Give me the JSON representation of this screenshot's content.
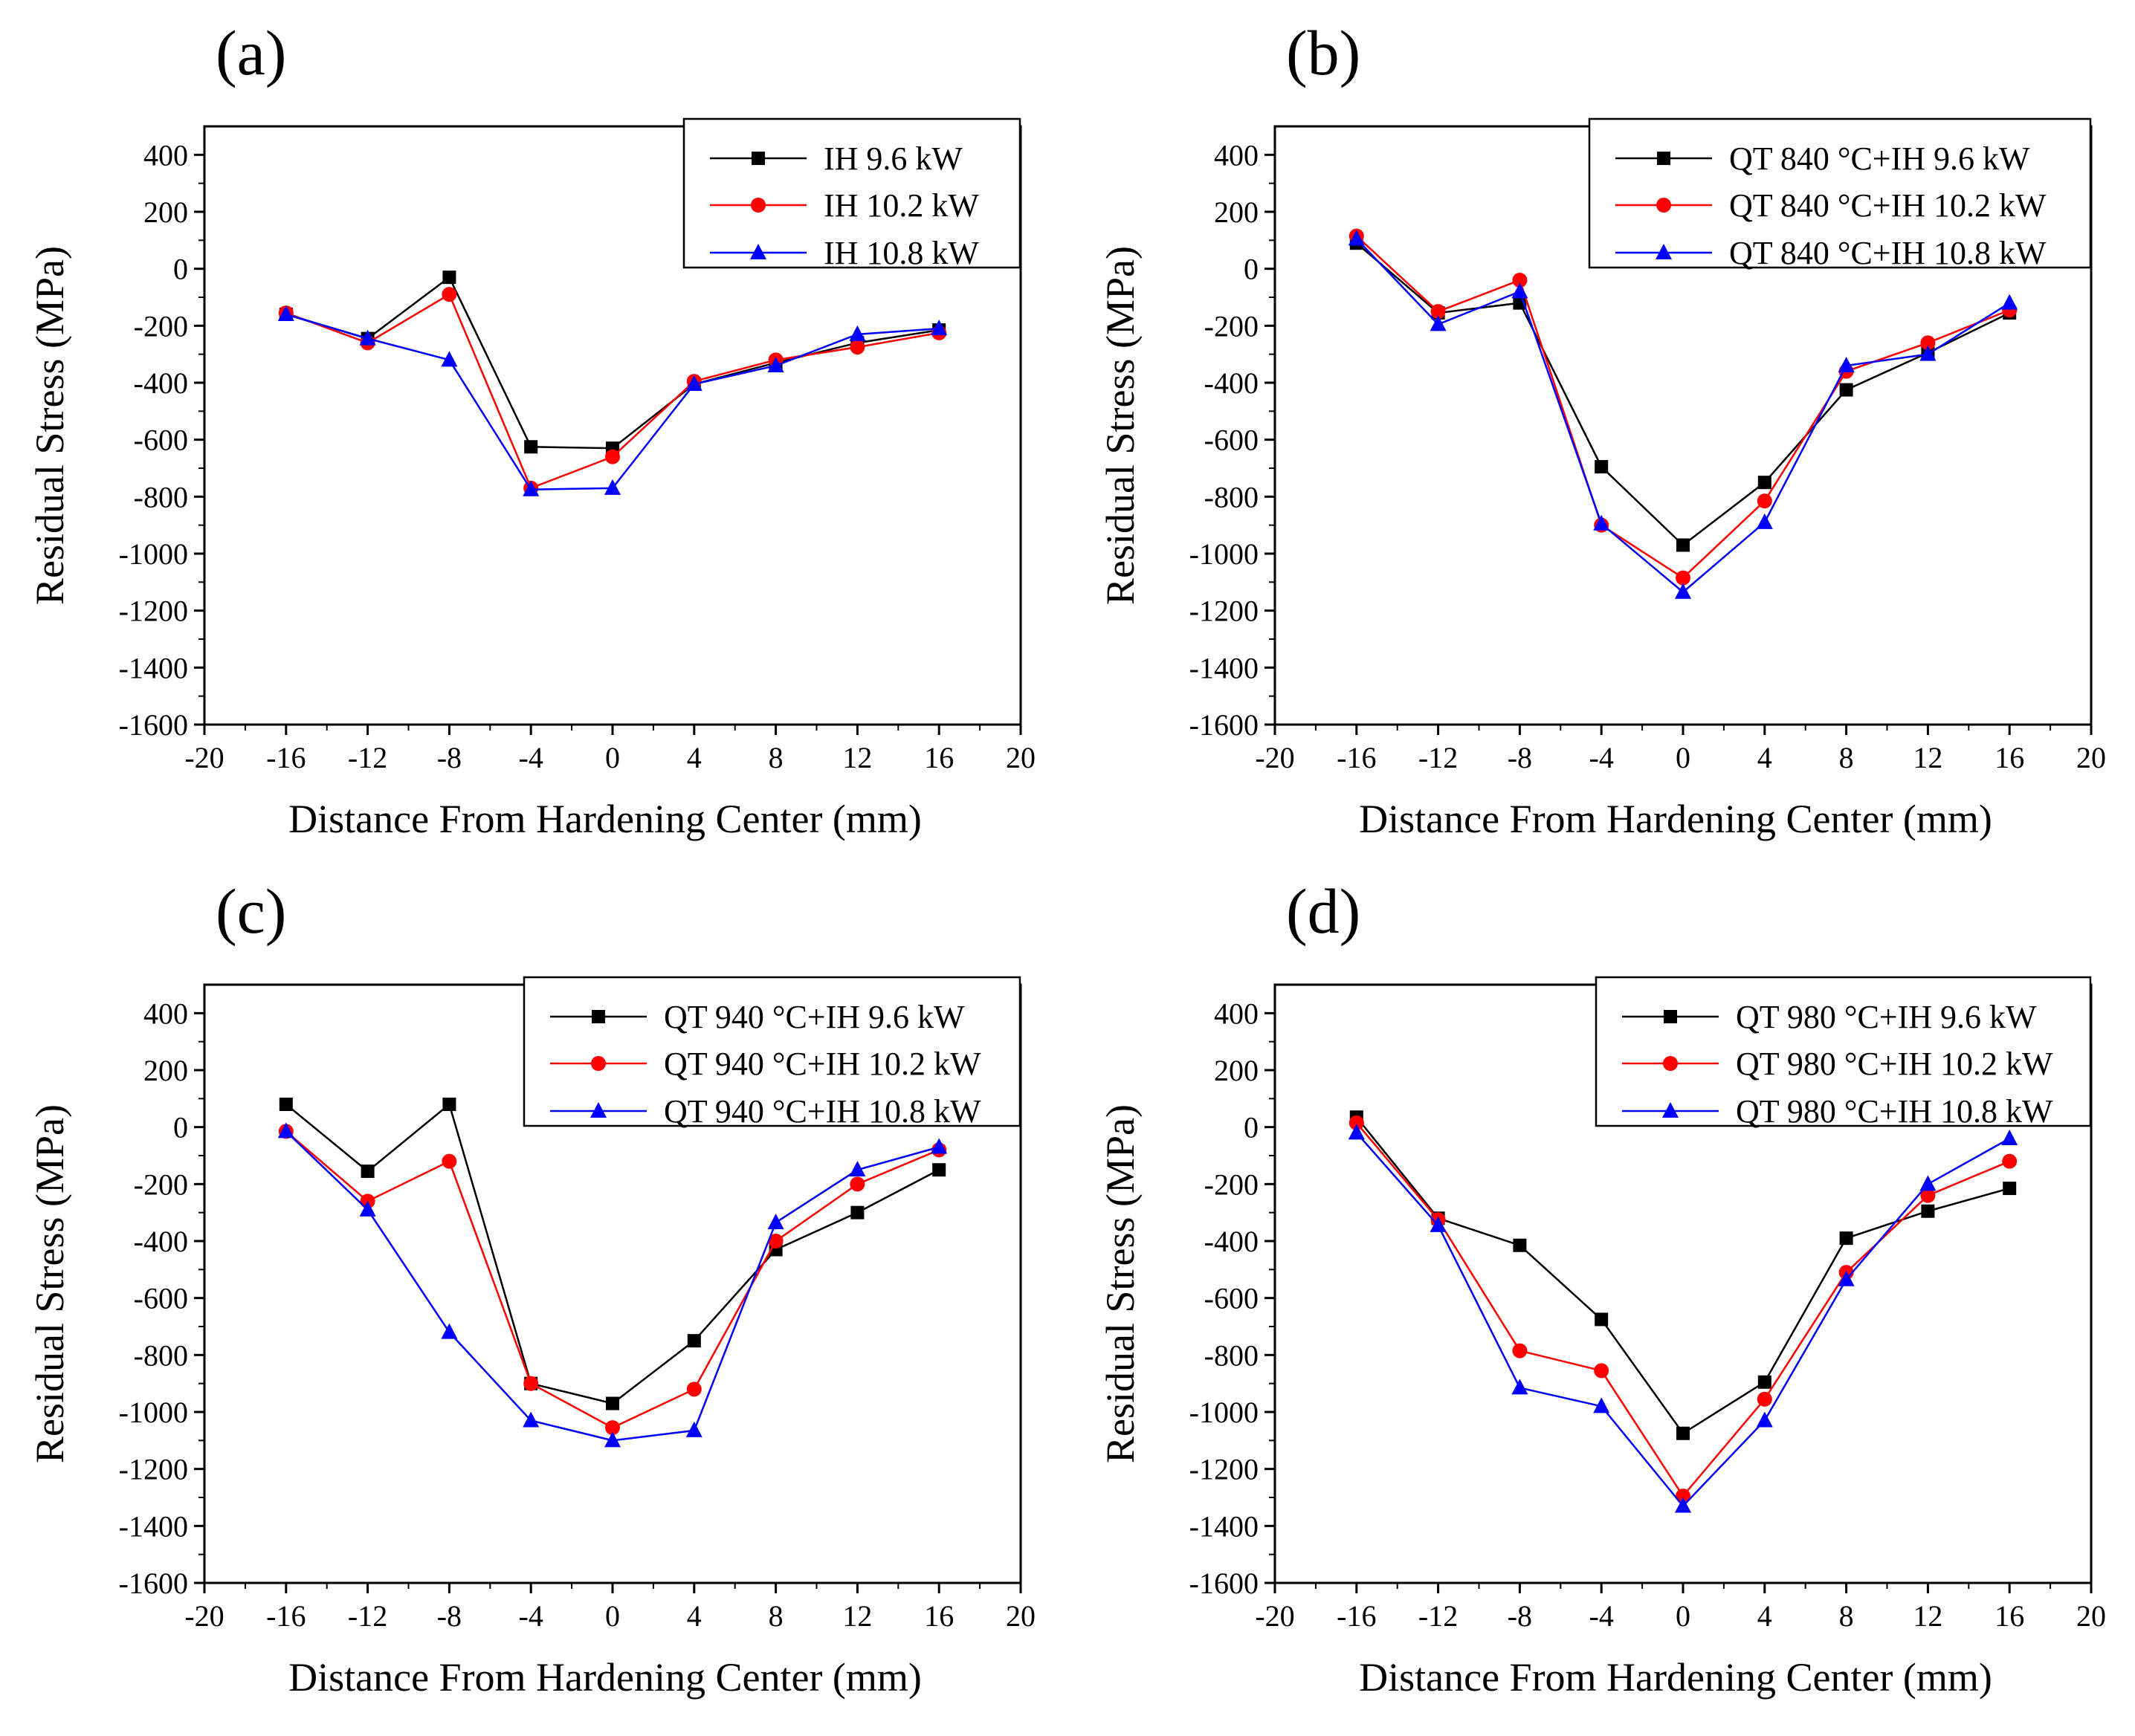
{
  "figure": {
    "background": "#ffffff",
    "series_colors": [
      "#000000",
      "#ff0000",
      "#0000ff"
    ]
  },
  "chart_data": [
    {
      "panel": "(a)",
      "type": "line",
      "xlabel": "Distance From Hardening Center (mm)",
      "ylabel": "Residual Stress (MPa)",
      "xlim": [
        -20,
        20
      ],
      "ylim": [
        -1600,
        500
      ],
      "xticks": [
        "-20",
        "-16",
        "-12",
        "-8",
        "-4",
        "0",
        "4",
        "8",
        "12",
        "16",
        "20"
      ],
      "yticks": [
        "400",
        "200",
        "0",
        "-200",
        "-400",
        "-600",
        "-800",
        "-1000",
        "-1200",
        "-1400",
        "-1600"
      ],
      "legend_position": "top-right",
      "x": [
        -16,
        -12,
        -8,
        -4,
        0,
        4,
        8,
        12,
        16
      ],
      "series": [
        {
          "name": "IH 9.6 kW",
          "marker": "square",
          "color": "#000000",
          "values": [
            -160,
            -245,
            -30,
            -625,
            -630,
            -405,
            -330,
            -260,
            -215
          ]
        },
        {
          "name": "IH 10.2 kW",
          "marker": "circle",
          "color": "#ff0000",
          "values": [
            -155,
            -260,
            -90,
            -770,
            -660,
            -395,
            -320,
            -275,
            -225
          ]
        },
        {
          "name": "IH 10.8 kW",
          "marker": "triangle",
          "color": "#0000ff",
          "values": [
            -160,
            -245,
            -320,
            -775,
            -770,
            -405,
            -340,
            -230,
            -210
          ]
        }
      ]
    },
    {
      "panel": "(b)",
      "type": "line",
      "xlabel": "Distance From Hardening Center (mm)",
      "ylabel": "Residual Stress (MPa)",
      "xlim": [
        -20,
        20
      ],
      "ylim": [
        -1600,
        500
      ],
      "xticks": [
        "-20",
        "-16",
        "-12",
        "-8",
        "-4",
        "0",
        "4",
        "8",
        "12",
        "16",
        "20"
      ],
      "yticks": [
        "400",
        "200",
        "0",
        "-200",
        "-400",
        "-600",
        "-800",
        "-1000",
        "-1200",
        "-1400",
        "-1600"
      ],
      "legend_position": "top-right",
      "x": [
        -16,
        -12,
        -8,
        -4,
        0,
        4,
        8,
        12,
        16
      ],
      "series": [
        {
          "name": "QT 840 °C+IH 9.6 kW",
          "marker": "square",
          "color": "#000000",
          "values": [
            90,
            -155,
            -120,
            -695,
            -970,
            -750,
            -425,
            -295,
            -155
          ]
        },
        {
          "name": "QT 840 °C+IH 10.2 kW",
          "marker": "circle",
          "color": "#ff0000",
          "values": [
            115,
            -150,
            -40,
            -900,
            -1085,
            -815,
            -360,
            -260,
            -145
          ]
        },
        {
          "name": "QT 840 °C+IH 10.8 kW",
          "marker": "triangle",
          "color": "#0000ff",
          "values": [
            105,
            -195,
            -80,
            -895,
            -1135,
            -890,
            -340,
            -300,
            -120
          ]
        }
      ]
    },
    {
      "panel": "(c)",
      "type": "line",
      "xlabel": "Distance From Hardening Center (mm)",
      "ylabel": "Residual Stress (MPa)",
      "xlim": [
        -20,
        20
      ],
      "ylim": [
        -1600,
        500
      ],
      "xticks": [
        "-20",
        "-16",
        "-12",
        "-8",
        "-4",
        "0",
        "4",
        "8",
        "12",
        "16",
        "20"
      ],
      "yticks": [
        "400",
        "200",
        "0",
        "-200",
        "-400",
        "-600",
        "-800",
        "-1000",
        "-1200",
        "-1400",
        "-1600"
      ],
      "legend_position": "top-right",
      "x": [
        -16,
        -12,
        -8,
        -4,
        0,
        4,
        8,
        12,
        16
      ],
      "series": [
        {
          "name": "QT 940 °C+IH 9.6 kW",
          "marker": "square",
          "color": "#000000",
          "values": [
            80,
            -155,
            80,
            -900,
            -970,
            -750,
            -430,
            -300,
            -150
          ]
        },
        {
          "name": "QT 940 °C+IH 10.2 kW",
          "marker": "circle",
          "color": "#ff0000",
          "values": [
            -15,
            -260,
            -120,
            -900,
            -1055,
            -920,
            -400,
            -200,
            -80
          ]
        },
        {
          "name": "QT 940 °C+IH 10.8 kW",
          "marker": "triangle",
          "color": "#0000ff",
          "values": [
            -15,
            -290,
            -720,
            -1030,
            -1100,
            -1065,
            -335,
            -150,
            -70
          ]
        }
      ]
    },
    {
      "panel": "(d)",
      "type": "line",
      "xlabel": "Distance From Hardening Center (mm)",
      "ylabel": "Residual Stress (MPa)",
      "xlim": [
        -20,
        20
      ],
      "ylim": [
        -1600,
        500
      ],
      "xticks": [
        "-20",
        "-16",
        "-12",
        "-8",
        "-4",
        "0",
        "4",
        "8",
        "12",
        "16",
        "20"
      ],
      "yticks": [
        "400",
        "200",
        "0",
        "-200",
        "-400",
        "-600",
        "-800",
        "-1000",
        "-1200",
        "-1400",
        "-1600"
      ],
      "legend_position": "top-right",
      "x": [
        -16,
        -12,
        -8,
        -4,
        0,
        4,
        8,
        12,
        16
      ],
      "series": [
        {
          "name": "QT 980 °C+IH 9.6 kW",
          "marker": "square",
          "color": "#000000",
          "values": [
            35,
            -320,
            -415,
            -675,
            -1075,
            -895,
            -390,
            -295,
            -215
          ]
        },
        {
          "name": "QT 980 °C+IH 10.2 kW",
          "marker": "circle",
          "color": "#ff0000",
          "values": [
            15,
            -325,
            -785,
            -855,
            -1295,
            -955,
            -510,
            -240,
            -120
          ]
        },
        {
          "name": "QT 980 °C+IH 10.8 kW",
          "marker": "triangle",
          "color": "#0000ff",
          "values": [
            -20,
            -345,
            -915,
            -980,
            -1330,
            -1030,
            -535,
            -200,
            -40
          ]
        }
      ]
    }
  ]
}
